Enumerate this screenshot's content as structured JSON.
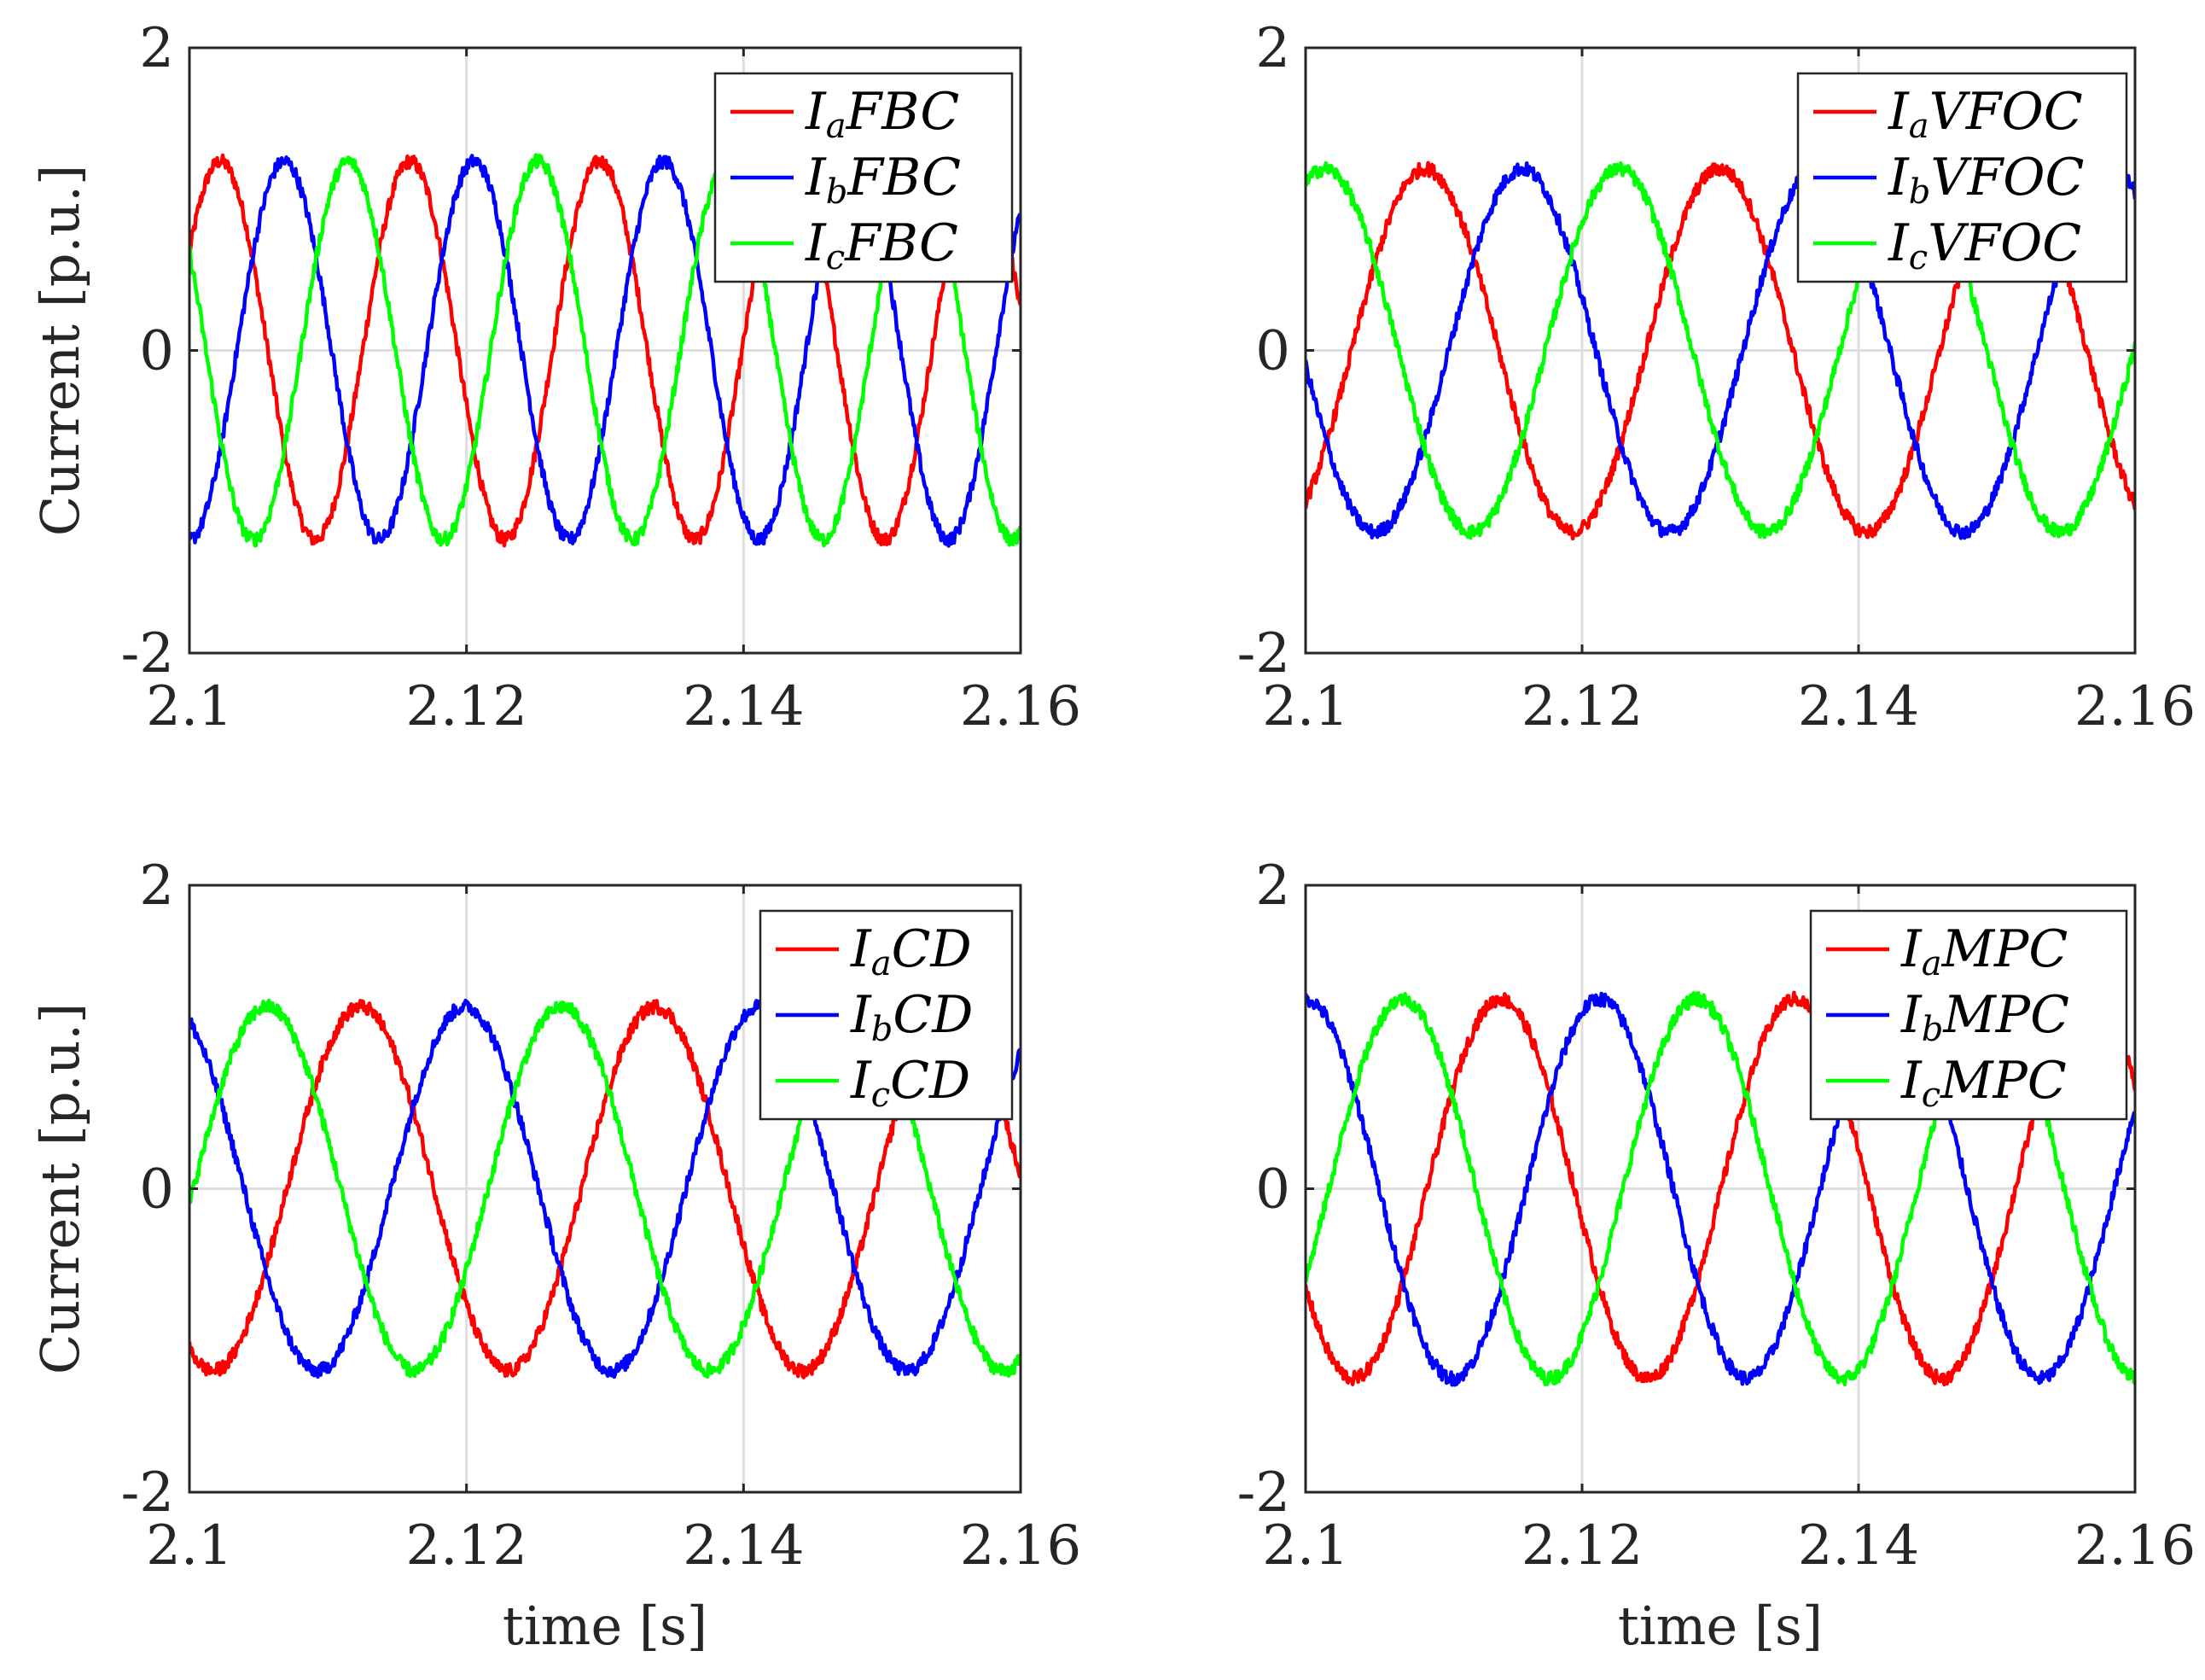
{
  "chart_data": [
    {
      "type": "line",
      "panel": "top-left",
      "ylabel": "Current [p.u.]",
      "xlabel": "",
      "xlim": [
        2.1,
        2.16
      ],
      "ylim": [
        -2,
        2
      ],
      "xticks": [
        "2.1",
        "2.12",
        "2.14",
        "2.16"
      ],
      "yticks": [
        "-2",
        "0",
        "2"
      ],
      "grid": true,
      "legend_position": "top-right",
      "frequency_hz": 73,
      "series": [
        {
          "name": "I_a FBC",
          "legend_main": "I",
          "legend_sub": "a",
          "legend_suffix": "FBC",
          "color": "#ff0000",
          "amplitude": 1.25,
          "value_at_start": 0.65,
          "rising_at_start": true
        },
        {
          "name": "I_b FBC",
          "legend_main": "I",
          "legend_sub": "b",
          "legend_suffix": "FBC",
          "color": "#0000ff",
          "amplitude": 1.25,
          "value_at_start": -1.25,
          "rising_at_start": true
        },
        {
          "name": "I_c FBC",
          "legend_main": "I",
          "legend_sub": "c",
          "legend_suffix": "FBC",
          "color": "#00ff00",
          "amplitude": 1.25,
          "value_at_start": 0.65,
          "rising_at_start": false
        }
      ]
    },
    {
      "type": "line",
      "panel": "top-right",
      "ylabel": "",
      "xlabel": "",
      "xlim": [
        2.1,
        2.16
      ],
      "ylim": [
        -2,
        2
      ],
      "xticks": [
        "2.1",
        "2.12",
        "2.14",
        "2.16"
      ],
      "yticks": [
        "-2",
        "0",
        "2"
      ],
      "grid": true,
      "legend_position": "top-right",
      "frequency_hz": 47,
      "series": [
        {
          "name": "I_a VFOC",
          "legend_main": "I",
          "legend_sub": "a",
          "legend_suffix": "VFOC",
          "color": "#ff0000",
          "amplitude": 1.2,
          "value_at_start": -1.0,
          "rising_at_start": true
        },
        {
          "name": "I_b VFOC",
          "legend_main": "I",
          "legend_sub": "b",
          "legend_suffix": "VFOC",
          "color": "#0000ff",
          "amplitude": 1.2,
          "value_at_start": -0.1,
          "rising_at_start": false
        },
        {
          "name": "I_c VFOC",
          "legend_main": "I",
          "legend_sub": "c",
          "legend_suffix": "VFOC",
          "color": "#00ff00",
          "amplitude": 1.2,
          "value_at_start": 1.1,
          "rising_at_start": true
        }
      ]
    },
    {
      "type": "line",
      "panel": "bottom-left",
      "ylabel": "Current [p.u.]",
      "xlabel": "time [s]",
      "xlim": [
        2.1,
        2.16
      ],
      "ylim": [
        -2,
        2
      ],
      "xticks": [
        "2.1",
        "2.12",
        "2.14",
        "2.16"
      ],
      "yticks": [
        "-2",
        "0",
        "2"
      ],
      "grid": true,
      "legend_position": "top-right",
      "frequency_hz": 47,
      "series": [
        {
          "name": "I_a CD",
          "legend_main": "I",
          "legend_sub": "a",
          "legend_suffix": "CD",
          "color": "#ff0000",
          "amplitude": 1.2,
          "value_at_start": -1.05,
          "rising_at_start": false
        },
        {
          "name": "I_b CD",
          "legend_main": "I",
          "legend_sub": "b",
          "legend_suffix": "CD",
          "color": "#0000ff",
          "amplitude": 1.2,
          "value_at_start": 1.1,
          "rising_at_start": false
        },
        {
          "name": "I_c CD",
          "legend_main": "I",
          "legend_sub": "c",
          "legend_suffix": "CD",
          "color": "#00ff00",
          "amplitude": 1.2,
          "value_at_start": -0.1,
          "rising_at_start": true
        }
      ]
    },
    {
      "type": "line",
      "panel": "bottom-right",
      "ylabel": "",
      "xlabel": "time [s]",
      "xlim": [
        2.1,
        2.16
      ],
      "ylim": [
        -2,
        2
      ],
      "xticks": [
        "2.1",
        "2.12",
        "2.14",
        "2.16"
      ],
      "yticks": [
        "-2",
        "0",
        "2"
      ],
      "grid": true,
      "legend_position": "top-right",
      "frequency_hz": 47,
      "series": [
        {
          "name": "I_a MPC",
          "legend_main": "I",
          "legend_sub": "a",
          "legend_suffix": "MPC",
          "color": "#ff0000",
          "amplitude": 1.25,
          "value_at_start": -0.65,
          "rising_at_start": false
        },
        {
          "name": "I_b MPC",
          "legend_main": "I",
          "legend_sub": "b",
          "legend_suffix": "MPC",
          "color": "#0000ff",
          "amplitude": 1.25,
          "value_at_start": 1.25,
          "rising_at_start": false
        },
        {
          "name": "I_c MPC",
          "legend_main": "I",
          "legend_sub": "c",
          "legend_suffix": "MPC",
          "color": "#00ff00",
          "amplitude": 1.25,
          "value_at_start": -0.6,
          "rising_at_start": true
        }
      ]
    }
  ]
}
